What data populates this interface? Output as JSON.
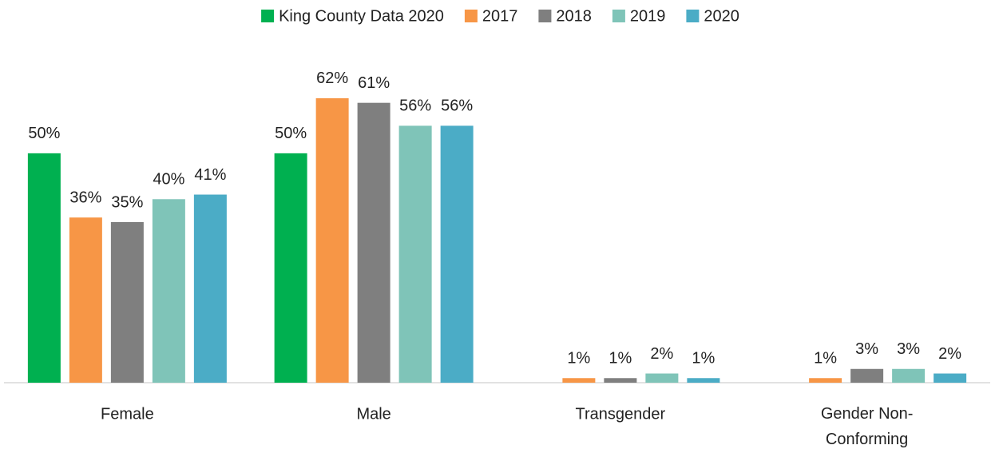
{
  "chart_data": {
    "type": "bar",
    "categories": [
      "Female",
      "Male",
      "Transgender",
      "Gender Non-Conforming"
    ],
    "series": [
      {
        "name": "King County Data 2020",
        "color": "#00b050",
        "values": [
          50,
          50,
          null,
          null
        ],
        "value_labels": [
          "50%",
          "50%",
          null,
          null
        ]
      },
      {
        "name": "2017",
        "color": "#f79646",
        "values": [
          36,
          62,
          1,
          1
        ],
        "value_labels": [
          "36%",
          "62%",
          "1%",
          "1%"
        ]
      },
      {
        "name": "2018",
        "color": "#7f7f7f",
        "values": [
          35,
          61,
          1,
          3
        ],
        "value_labels": [
          "35%",
          "61%",
          "1%",
          "3%"
        ]
      },
      {
        "name": "2019",
        "color": "#7fc4b8",
        "values": [
          40,
          56,
          2,
          3
        ],
        "value_labels": [
          "40%",
          "56%",
          "2%",
          "3%"
        ]
      },
      {
        "name": "2020",
        "color": "#4bacc6",
        "values": [
          41,
          56,
          1,
          2
        ],
        "value_labels": [
          "41%",
          "56%",
          "1%",
          "2%"
        ]
      }
    ],
    "ylim": [
      0,
      70
    ],
    "legend": "top"
  }
}
